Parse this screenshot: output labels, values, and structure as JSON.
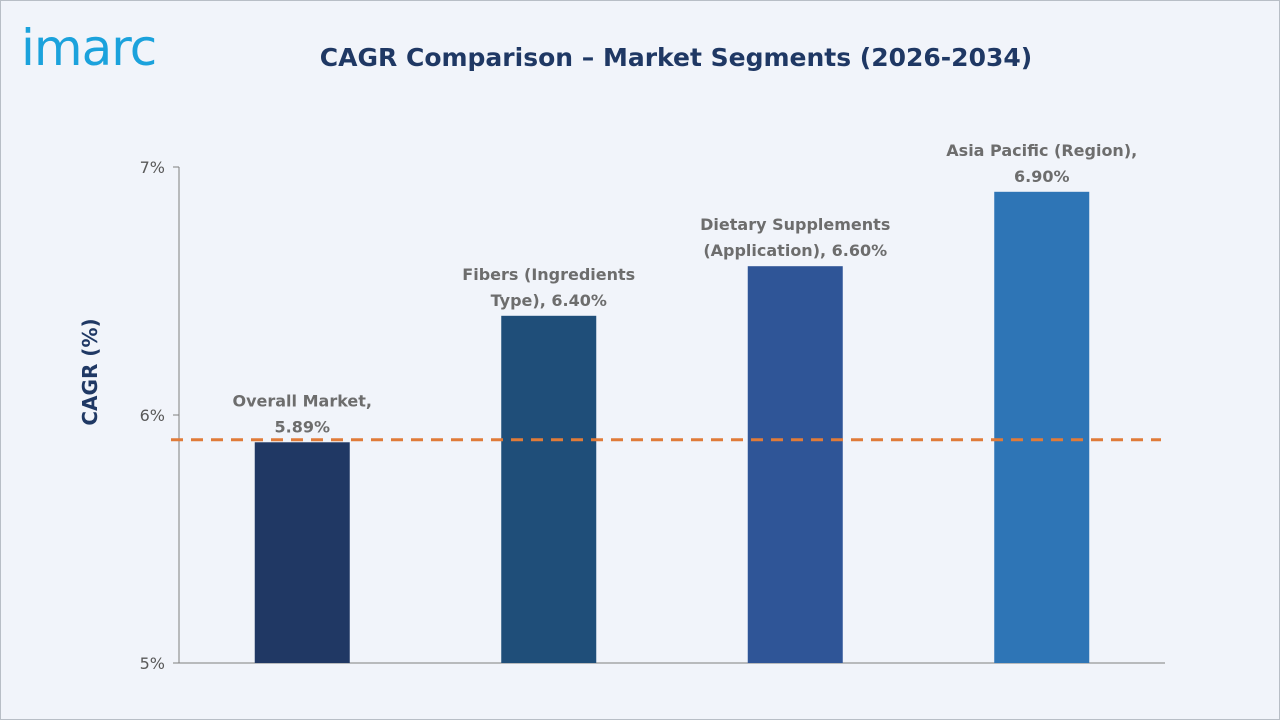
{
  "logo": {
    "text": "imarc",
    "color": "#1ba2dc"
  },
  "chart_data": {
    "type": "bar",
    "title": "CAGR Comparison – Market Segments (2026-2034)",
    "ylabel": "CAGR (%)",
    "xlabel": "",
    "ylim": [
      5,
      7
    ],
    "yticks": [
      5,
      6,
      7
    ],
    "ytick_labels": [
      "5%",
      "6%",
      "7%"
    ],
    "grid": false,
    "categories": [
      "Overall Market",
      "Fibers (Ingredients Type)",
      "Dietary Supplements (Application)",
      "Asia Pacific (Region)"
    ],
    "values": [
      5.89,
      6.4,
      6.6,
      6.9
    ],
    "data_labels": [
      [
        "Overall Market,",
        "5.89%"
      ],
      [
        "Fibers (Ingredients",
        "Type), 6.40%"
      ],
      [
        "Dietary Supplements",
        "(Application), 6.60%"
      ],
      [
        "Asia Pacific (Region),",
        "6.90%"
      ]
    ],
    "colors": [
      "#203864",
      "#1f4e79",
      "#2f5597",
      "#2e75b6"
    ],
    "reference_line": {
      "value": 5.9,
      "style": "dashed",
      "color": "#e07b39"
    }
  }
}
